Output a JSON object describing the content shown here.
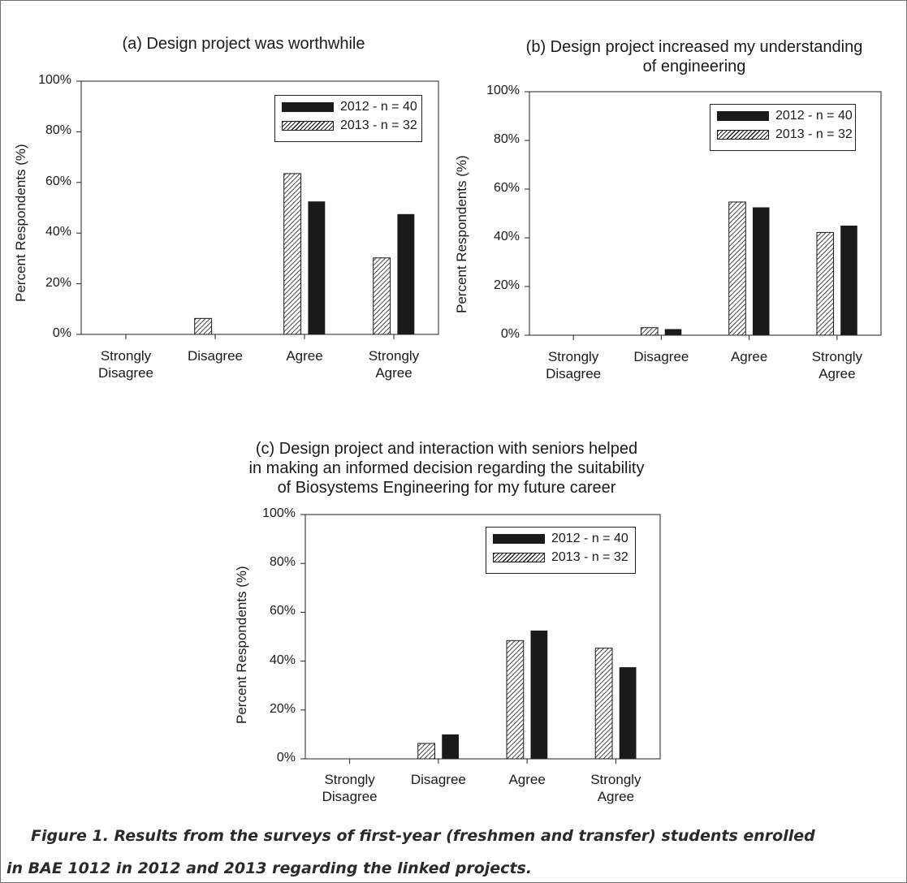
{
  "chart_data": [
    {
      "type": "bar",
      "title": "(a) Design project was worthwhile",
      "ylabel": "Percent Respondents (%)",
      "categories": [
        "Strongly Disagree",
        "Disagree",
        "Agree",
        "Strongly Agree"
      ],
      "ylim": [
        0,
        100
      ],
      "yticks": [
        "0%",
        "20%",
        "40%",
        "60%",
        "80%",
        "100%"
      ],
      "legend_position": "top-right",
      "series": [
        {
          "name": "2012 - n = 40",
          "values": [
            0,
            0,
            52.5,
            47.5
          ]
        },
        {
          "name": "2013 - n = 32",
          "values": [
            0,
            6.3,
            63.5,
            30.2
          ]
        }
      ]
    },
    {
      "type": "bar",
      "title": "(b) Design project increased my understanding of engineering",
      "ylabel": "Percent Respondents (%)",
      "categories": [
        "Strongly Disagree",
        "Disagree",
        "Agree",
        "Strongly Agree"
      ],
      "ylim": [
        0,
        100
      ],
      "yticks": [
        "0%",
        "20%",
        "40%",
        "60%",
        "80%",
        "100%"
      ],
      "legend_position": "top-right",
      "series": [
        {
          "name": "2012 - n = 40",
          "values": [
            0,
            2.5,
            52.5,
            45
          ]
        },
        {
          "name": "2013 - n = 32",
          "values": [
            0,
            3.1,
            54.7,
            42.2
          ]
        }
      ]
    },
    {
      "type": "bar",
      "title": "(c) Design project and interaction with seniors helped in making an informed decision regarding the suitability of Biosystems Engineering for my future career",
      "ylabel": "Percent Respondents (%)",
      "categories": [
        "Strongly Disagree",
        "Disagree",
        "Agree",
        "Strongly Agree"
      ],
      "ylim": [
        0,
        100
      ],
      "yticks": [
        "0%",
        "20%",
        "40%",
        "60%",
        "80%",
        "100%"
      ],
      "legend_position": "top-right",
      "series": [
        {
          "name": "2012 - n = 40",
          "values": [
            0,
            10,
            52.5,
            37.5
          ]
        },
        {
          "name": "2013 - n = 32",
          "values": [
            0,
            6.3,
            48.4,
            45.3
          ]
        }
      ]
    }
  ],
  "titles": {
    "a": [
      "(a) Design project was worthwhile"
    ],
    "b": [
      "(b) Design project increased my understanding",
      "of engineering"
    ],
    "c": [
      "(c) Design project and interaction with seniors helped",
      "in making an informed decision regarding the suitability",
      "of Biosystems Engineering for my future career"
    ]
  },
  "caption": {
    "line1": "Figure 1. Results from the surveys of first-year (freshmen and transfer) students enrolled",
    "line2": "in BAE 1012 in 2012 and 2013 regarding the linked projects."
  },
  "colors": {
    "bar_2012": "#1a1a1a",
    "bar_2013": "hatched"
  }
}
